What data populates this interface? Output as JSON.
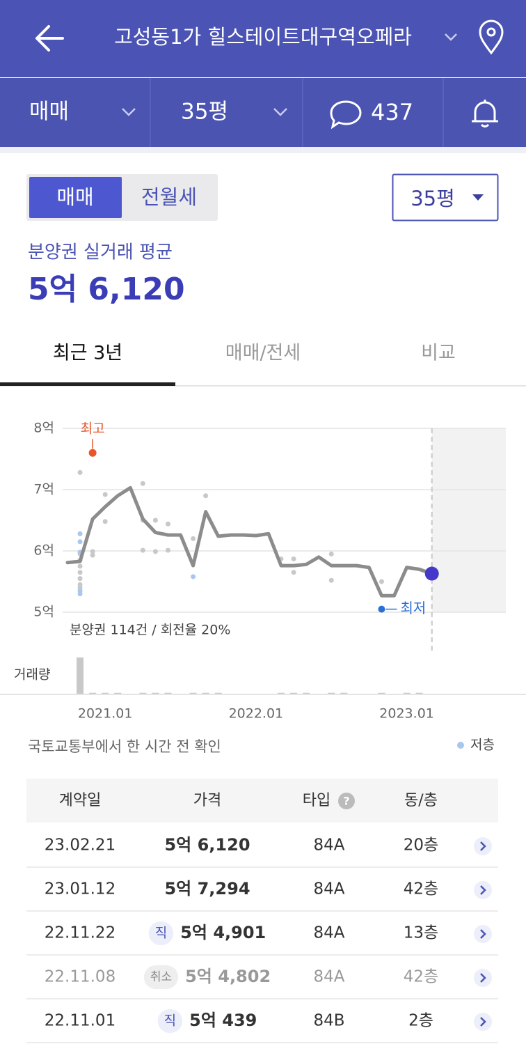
{
  "header": {
    "title": "고성동1가 힐스테이트대구역오페라"
  },
  "filters": {
    "deal": "매매",
    "size": "35평",
    "comments": "437"
  },
  "toggle": {
    "options": [
      "매매",
      "전월세"
    ],
    "size": "35평"
  },
  "summary": {
    "label": "분양권 실거래 평균",
    "value": "5억 6,120"
  },
  "tabs": [
    "최근 3년",
    "매매/전세",
    "비교"
  ],
  "chart_data": {
    "type": "line",
    "color": "#8c8c8c",
    "x": [
      "2020.10",
      "2020.11",
      "2020.12",
      "2021.01",
      "2021.02",
      "2021.03",
      "2021.04",
      "2021.05",
      "2021.06",
      "2021.07",
      "2021.08",
      "2021.09",
      "2021.10",
      "2021.11",
      "2021.12",
      "2022.01",
      "2022.02",
      "2022.03",
      "2022.04",
      "2022.05",
      "2022.06",
      "2022.07",
      "2022.08",
      "2022.09",
      "2022.10",
      "2022.11",
      "2022.12",
      "2023.01",
      "2023.02",
      "2023.03"
    ],
    "values": [
      5.81,
      5.83,
      6.52,
      6.72,
      6.9,
      7.03,
      6.52,
      6.3,
      6.26,
      6.26,
      5.76,
      6.64,
      6.24,
      6.26,
      6.26,
      6.25,
      6.28,
      5.76,
      5.76,
      5.78,
      5.9,
      5.76,
      5.76,
      5.76,
      5.73,
      5.27,
      5.27,
      5.73,
      5.7,
      5.63
    ],
    "xlim": [
      "2020.10",
      "2023.08"
    ],
    "xticks": [
      "2021.01",
      "2022.01",
      "2023.01"
    ],
    "ylim": [
      5,
      8
    ],
    "yticks": [
      {
        "value": 8,
        "label": "8억"
      },
      {
        "value": 7,
        "label": "7억"
      },
      {
        "value": 6,
        "label": "6억"
      },
      {
        "value": 5,
        "label": "5억"
      }
    ],
    "grid": true,
    "points": {
      "color": "#c8c8c8",
      "x": [
        "2020.11",
        "2021.01",
        "2021.01",
        "2021.04",
        "2021.04",
        "2021.05",
        "2021.06",
        "2021.04",
        "2021.05",
        "2021.06",
        "2021.08",
        "2021.09",
        "2020.12",
        "2020.12",
        "2022.03",
        "2022.04",
        "2022.04",
        "2022.07",
        "2022.07",
        "2022.11",
        "2020.11",
        "2020.11",
        "2020.11",
        "2020.11",
        "2020.11",
        "2020.11",
        "2020.11"
      ],
      "values": [
        7.28,
        6.48,
        6.92,
        7.1,
        6.5,
        6.5,
        6.44,
        6.01,
        5.99,
        6.01,
        6.2,
        6.9,
        5.93,
        5.99,
        5.87,
        5.87,
        5.65,
        5.95,
        5.52,
        5.5,
        5.95,
        5.85,
        5.75,
        5.65,
        5.55,
        5.45,
        5.4
      ]
    },
    "low_floor": {
      "name": "저층",
      "color": "#a9c6ee",
      "x": [
        "2020.11",
        "2020.11",
        "2020.11",
        "2020.11",
        "2020.11",
        "2021.08"
      ],
      "values": [
        6.28,
        6.15,
        5.98,
        5.35,
        5.3,
        5.58
      ]
    },
    "high": {
      "label": "최고",
      "x": "2020.12",
      "value": 7.6,
      "color": "#e8572a"
    },
    "low": {
      "label": "최저",
      "x": "2022.11",
      "value": 5.05,
      "color": "#2a6fd6"
    },
    "last_color": "#4338ca",
    "note": "분양권 114건 / 회전율 20%",
    "volume": {
      "label": "거래량",
      "color": "#c8c8c8",
      "values": [
        0,
        40,
        1,
        1,
        1,
        0,
        1,
        1,
        1,
        0,
        1,
        1,
        1,
        0,
        0,
        0,
        0,
        1,
        1,
        1,
        0,
        1,
        1,
        0,
        0,
        1,
        0,
        1,
        1,
        0
      ]
    }
  },
  "source": "국토교통부에서 한 시간 전 확인",
  "table": {
    "headers": [
      "계약일",
      "가격",
      "타입",
      "동/층"
    ],
    "rows": [
      {
        "date": "23.02.21",
        "price": "5억 6,120",
        "type": "84A",
        "floor": "20층"
      },
      {
        "date": "23.01.12",
        "price": "5억 7,294",
        "type": "84A",
        "floor": "42층"
      },
      {
        "date": "22.11.22",
        "badge": "직",
        "price": "5억 4,901",
        "type": "84A",
        "floor": "13층"
      },
      {
        "date": "22.11.08",
        "badge": "취소",
        "price": "5억 4,802",
        "type": "84A",
        "floor": "42층",
        "cancelled": true
      },
      {
        "date": "22.11.01",
        "badge": "직",
        "price": "5억 439",
        "type": "84B",
        "floor": "2층"
      }
    ]
  }
}
